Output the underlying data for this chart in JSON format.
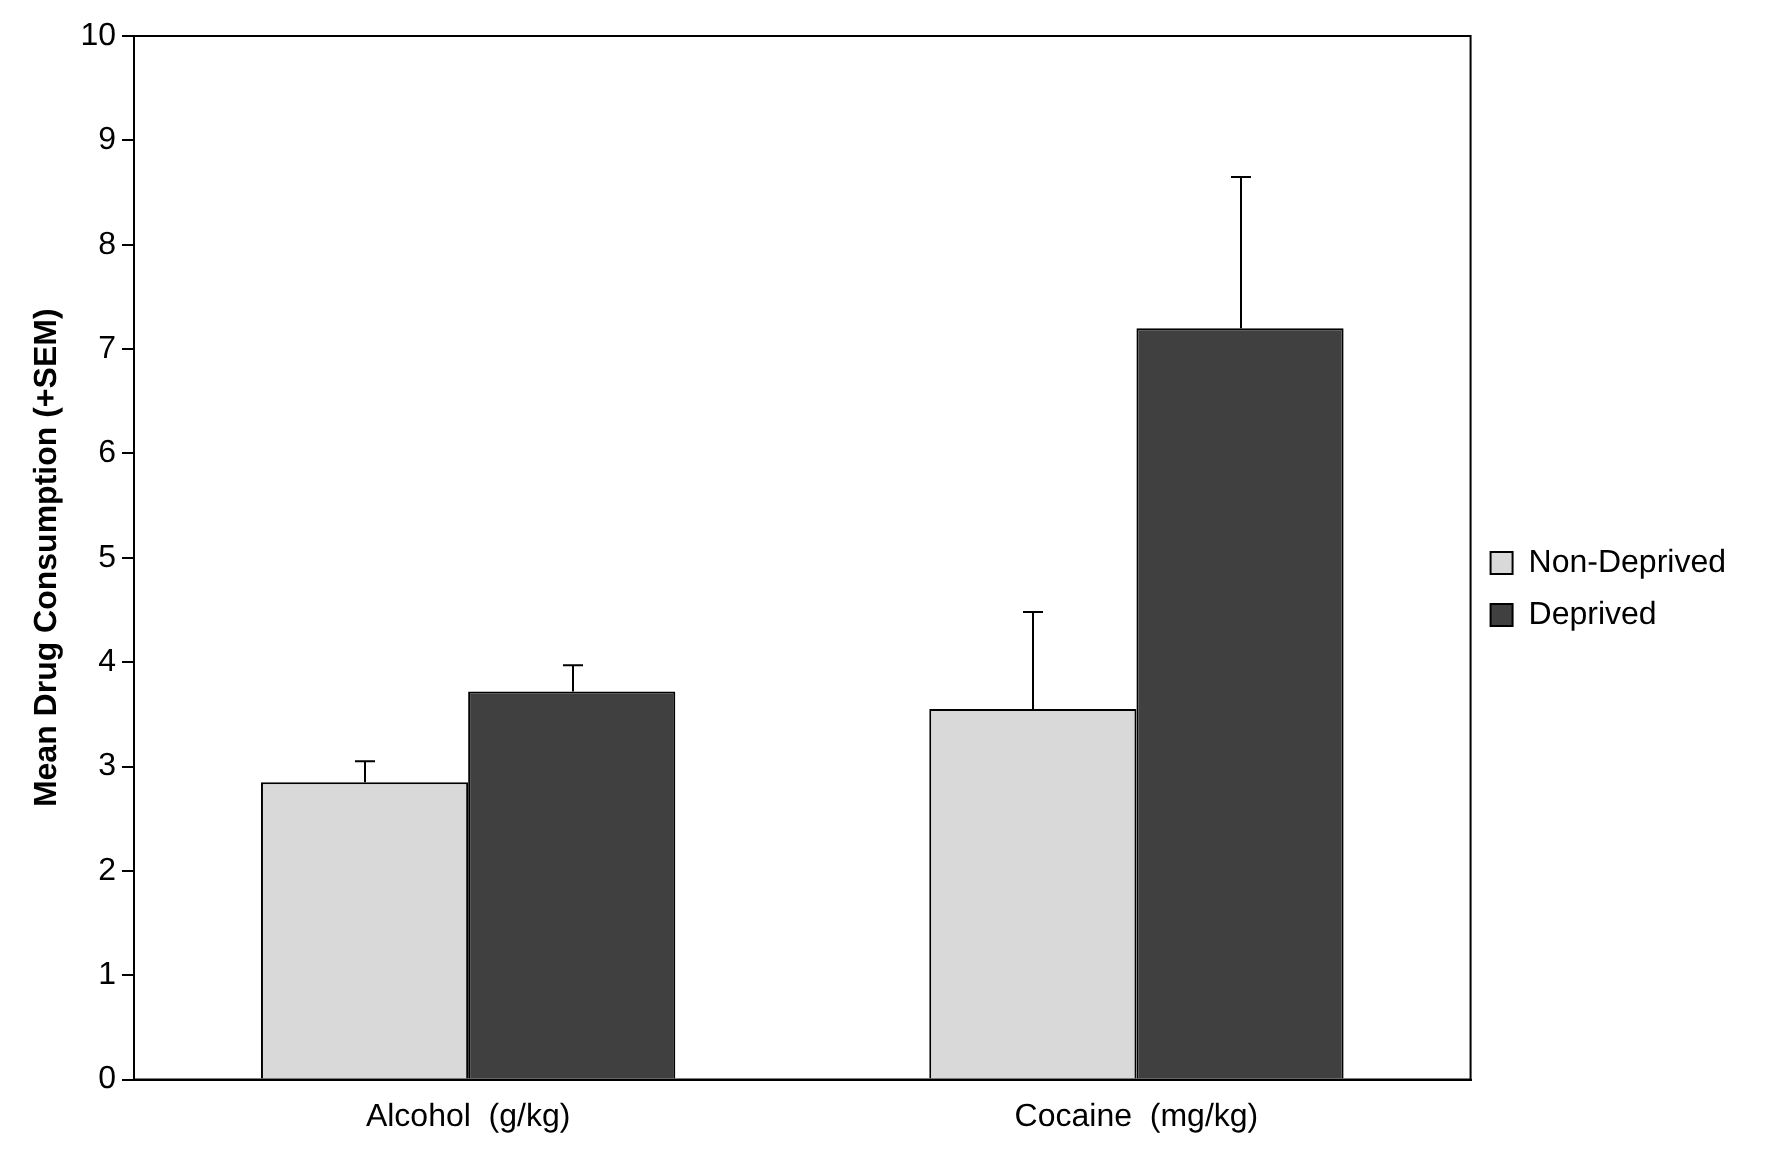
{
  "chart_data": {
    "type": "bar",
    "ylabel": "Mean Drug Consumption (+SEM)",
    "categories": [
      "Alcohol  (g/kg)",
      "Cocaine  (mg/kg)"
    ],
    "series": [
      {
        "name": "Non-Deprived",
        "color": "#d9d9d9",
        "values": [
          2.85,
          3.55
        ],
        "errors": [
          [
            2.85,
            3.05
          ],
          [
            3.55,
            4.48
          ]
        ]
      },
      {
        "name": "Deprived",
        "color": "#404040",
        "values": [
          3.72,
          7.2
        ],
        "errors": [
          [
            3.72,
            3.97
          ],
          [
            7.2,
            8.65
          ]
        ]
      }
    ],
    "ylim": [
      0,
      10
    ],
    "yticks": [
      0,
      1,
      2,
      3,
      4,
      5,
      6,
      7,
      8,
      9,
      10
    ],
    "grid": false,
    "legend": "right"
  }
}
